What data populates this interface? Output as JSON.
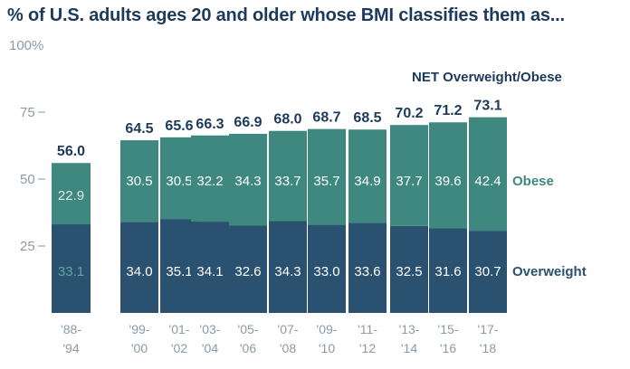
{
  "header": {
    "title": "% of U.S. adults ages 20 and older whose BMI classifies them as..."
  },
  "annotations": {
    "net_label": "NET Overweight/Obese"
  },
  "colors": {
    "overweight": "#2a5170",
    "obese": "#3f8880",
    "title": "#1c3a5c",
    "axis_text": "#8a9aa8",
    "legend_obese": "#3f8880",
    "legend_overweight": "#2a5170"
  },
  "chart_data": {
    "type": "bar",
    "stacked": true,
    "title": "% of U.S. adults ages 20 and older whose BMI classifies them as...",
    "categories": [
      [
        "'88-",
        "'94"
      ],
      [
        "'99-",
        "'00"
      ],
      [
        "'01-",
        "'02"
      ],
      [
        "'03-",
        "'04"
      ],
      [
        "'05-",
        "'06"
      ],
      [
        "'07-",
        "'08"
      ],
      [
        "'09-",
        "'10"
      ],
      [
        "'11-",
        "'12"
      ],
      [
        "'13-",
        "'14"
      ],
      [
        "'15-",
        "'16"
      ],
      [
        "'17-",
        "'18"
      ]
    ],
    "series": [
      {
        "name": "Overweight",
        "values": [
          33.1,
          34.0,
          35.1,
          34.1,
          32.6,
          34.3,
          33.0,
          33.6,
          32.5,
          31.6,
          30.7
        ]
      },
      {
        "name": "Obese",
        "values": [
          22.9,
          30.5,
          30.5,
          32.2,
          34.3,
          33.7,
          35.7,
          34.9,
          37.7,
          39.6,
          42.4
        ]
      }
    ],
    "totals": [
      "56.0",
      "64.5",
      "65.6",
      "66.3",
      "66.9",
      "68.0",
      "68.7",
      "68.5",
      "70.2",
      "71.2",
      "73.1"
    ],
    "overweight_labels": [
      "33.1",
      "34.0",
      "35.1",
      "34.1",
      "32.6",
      "34.3",
      "33.0",
      "33.6",
      "32.5",
      "31.6",
      "30.7"
    ],
    "obese_labels": [
      "22.9",
      "30.5",
      "30.5",
      "32.2",
      "34.3",
      "33.7",
      "35.7",
      "34.9",
      "37.7",
      "39.6",
      "42.4"
    ],
    "yticks": [
      "25",
      "50",
      "75",
      "100%"
    ],
    "ytick_values": [
      25,
      50,
      75,
      100
    ],
    "ylim": [
      0,
      100
    ],
    "legend": [
      "Obese",
      "Overweight"
    ],
    "grid": false
  }
}
